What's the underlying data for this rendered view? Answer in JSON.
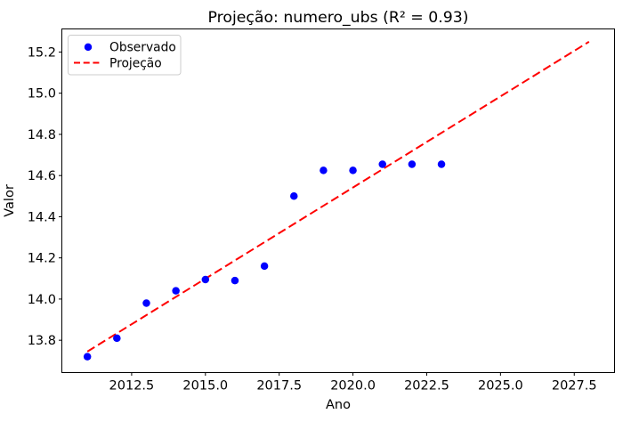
{
  "chart_data": {
    "type": "scatter",
    "title": "Projeção: numero_ubs (R² = 0.93)",
    "xlabel": "Ano",
    "ylabel": "Valor",
    "xlim": [
      2010.15,
      2028.85
    ],
    "ylim": [
      13.645,
      15.31
    ],
    "xticks": [
      2012.5,
      2015.0,
      2017.5,
      2020.0,
      2022.5,
      2025.0,
      2027.5
    ],
    "yticks": [
      13.8,
      14.0,
      14.2,
      14.4,
      14.6,
      14.8,
      15.0,
      15.2
    ],
    "grid": false,
    "legend_position": "upper left",
    "series": [
      {
        "name": "Observado",
        "kind": "scatter",
        "color": "#0000ff",
        "x": [
          2011,
          2012,
          2013,
          2014,
          2015,
          2016,
          2017,
          2018,
          2019,
          2020,
          2021,
          2022,
          2023
        ],
        "y": [
          13.72,
          13.81,
          13.98,
          14.04,
          14.095,
          14.09,
          14.16,
          14.5,
          14.625,
          14.625,
          14.655,
          14.655,
          14.655
        ]
      },
      {
        "name": "Projeção",
        "kind": "dashed-line",
        "color": "#ff0000",
        "x": [
          2011,
          2028
        ],
        "y": [
          13.745,
          15.25
        ]
      }
    ]
  }
}
